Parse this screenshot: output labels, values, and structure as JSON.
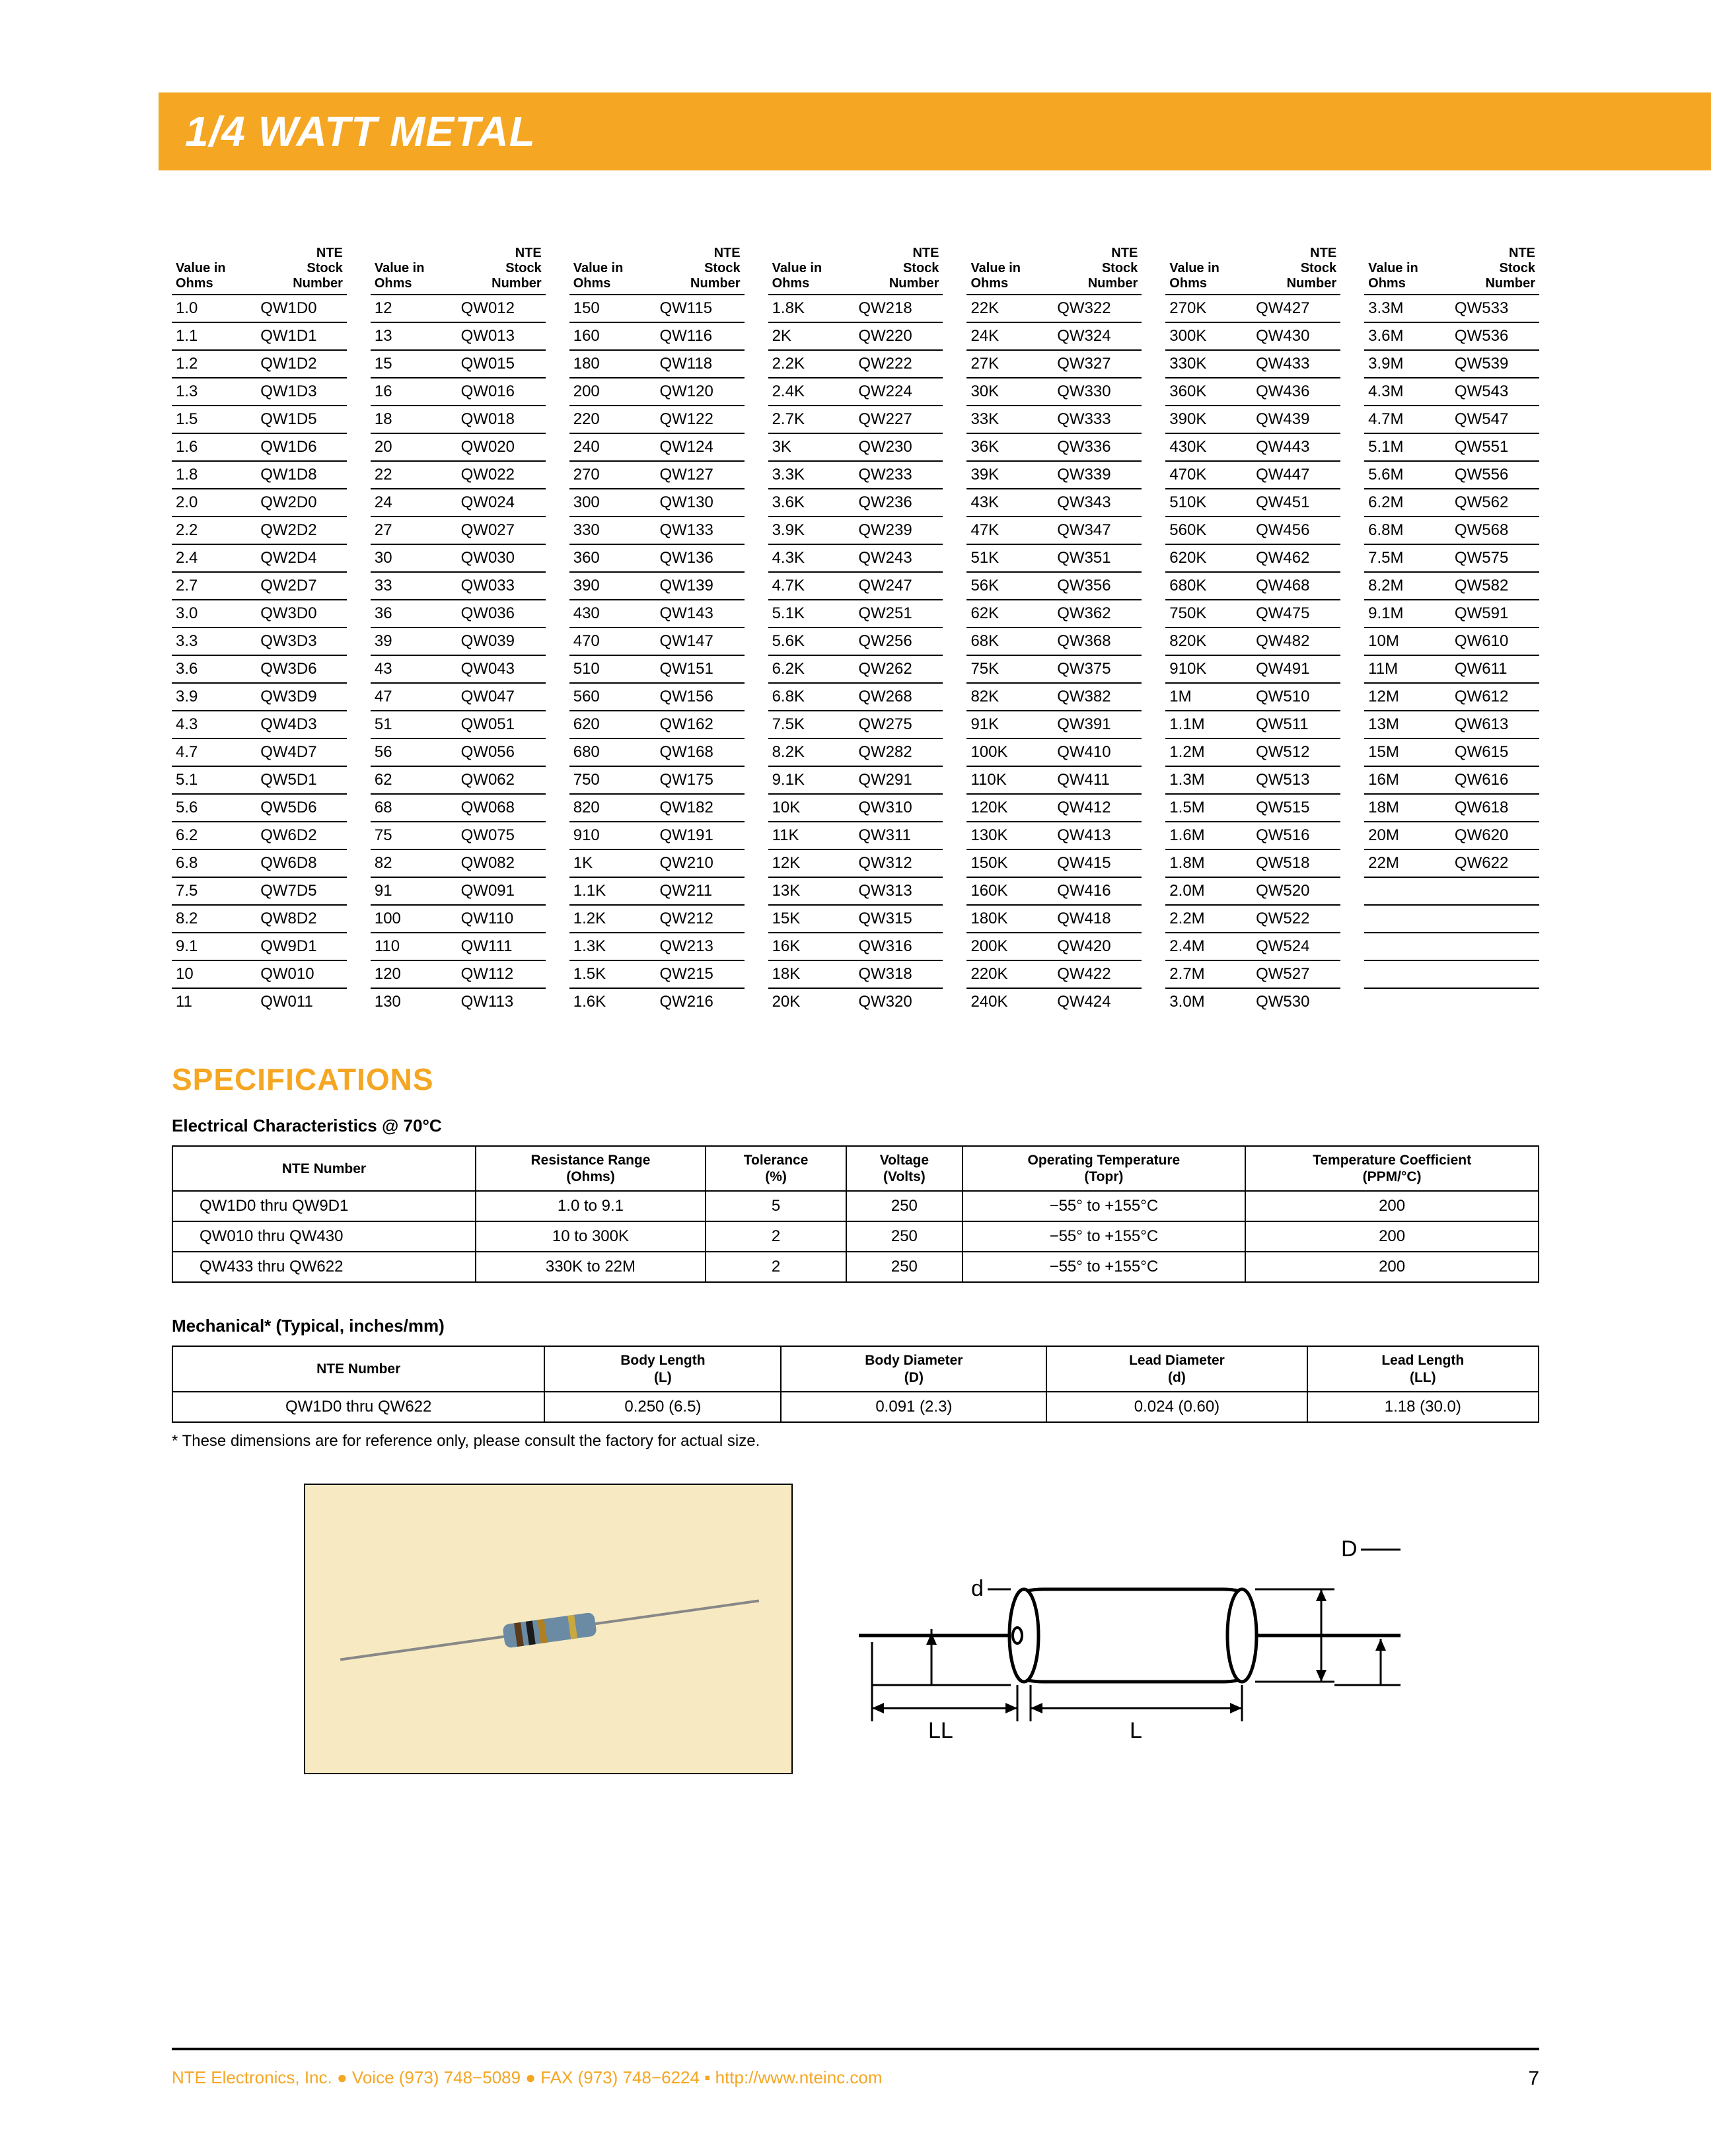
{
  "title": "1/4 WATT METAL",
  "header_value": "Value in\nOhms",
  "header_stock": "NTE\nStock\nNumber",
  "columns": [
    [
      [
        "1.0",
        "QW1D0"
      ],
      [
        "1.1",
        "QW1D1"
      ],
      [
        "1.2",
        "QW1D2"
      ],
      [
        "1.3",
        "QW1D3"
      ],
      [
        "1.5",
        "QW1D5"
      ],
      [
        "1.6",
        "QW1D6"
      ],
      [
        "1.8",
        "QW1D8"
      ],
      [
        "2.0",
        "QW2D0"
      ],
      [
        "2.2",
        "QW2D2"
      ],
      [
        "2.4",
        "QW2D4"
      ],
      [
        "2.7",
        "QW2D7"
      ],
      [
        "3.0",
        "QW3D0"
      ],
      [
        "3.3",
        "QW3D3"
      ],
      [
        "3.6",
        "QW3D6"
      ],
      [
        "3.9",
        "QW3D9"
      ],
      [
        "4.3",
        "QW4D3"
      ],
      [
        "4.7",
        "QW4D7"
      ],
      [
        "5.1",
        "QW5D1"
      ],
      [
        "5.6",
        "QW5D6"
      ],
      [
        "6.2",
        "QW6D2"
      ],
      [
        "6.8",
        "QW6D8"
      ],
      [
        "7.5",
        "QW7D5"
      ],
      [
        "8.2",
        "QW8D2"
      ],
      [
        "9.1",
        "QW9D1"
      ],
      [
        "10",
        "QW010"
      ],
      [
        "11",
        "QW011"
      ]
    ],
    [
      [
        "12",
        "QW012"
      ],
      [
        "13",
        "QW013"
      ],
      [
        "15",
        "QW015"
      ],
      [
        "16",
        "QW016"
      ],
      [
        "18",
        "QW018"
      ],
      [
        "20",
        "QW020"
      ],
      [
        "22",
        "QW022"
      ],
      [
        "24",
        "QW024"
      ],
      [
        "27",
        "QW027"
      ],
      [
        "30",
        "QW030"
      ],
      [
        "33",
        "QW033"
      ],
      [
        "36",
        "QW036"
      ],
      [
        "39",
        "QW039"
      ],
      [
        "43",
        "QW043"
      ],
      [
        "47",
        "QW047"
      ],
      [
        "51",
        "QW051"
      ],
      [
        "56",
        "QW056"
      ],
      [
        "62",
        "QW062"
      ],
      [
        "68",
        "QW068"
      ],
      [
        "75",
        "QW075"
      ],
      [
        "82",
        "QW082"
      ],
      [
        "91",
        "QW091"
      ],
      [
        "100",
        "QW110"
      ],
      [
        "110",
        "QW111"
      ],
      [
        "120",
        "QW112"
      ],
      [
        "130",
        "QW113"
      ]
    ],
    [
      [
        "150",
        "QW115"
      ],
      [
        "160",
        "QW116"
      ],
      [
        "180",
        "QW118"
      ],
      [
        "200",
        "QW120"
      ],
      [
        "220",
        "QW122"
      ],
      [
        "240",
        "QW124"
      ],
      [
        "270",
        "QW127"
      ],
      [
        "300",
        "QW130"
      ],
      [
        "330",
        "QW133"
      ],
      [
        "360",
        "QW136"
      ],
      [
        "390",
        "QW139"
      ],
      [
        "430",
        "QW143"
      ],
      [
        "470",
        "QW147"
      ],
      [
        "510",
        "QW151"
      ],
      [
        "560",
        "QW156"
      ],
      [
        "620",
        "QW162"
      ],
      [
        "680",
        "QW168"
      ],
      [
        "750",
        "QW175"
      ],
      [
        "820",
        "QW182"
      ],
      [
        "910",
        "QW191"
      ],
      [
        "1K",
        "QW210"
      ],
      [
        "1.1K",
        "QW211"
      ],
      [
        "1.2K",
        "QW212"
      ],
      [
        "1.3K",
        "QW213"
      ],
      [
        "1.5K",
        "QW215"
      ],
      [
        "1.6K",
        "QW216"
      ]
    ],
    [
      [
        "1.8K",
        "QW218"
      ],
      [
        "2K",
        "QW220"
      ],
      [
        "2.2K",
        "QW222"
      ],
      [
        "2.4K",
        "QW224"
      ],
      [
        "2.7K",
        "QW227"
      ],
      [
        "3K",
        "QW230"
      ],
      [
        "3.3K",
        "QW233"
      ],
      [
        "3.6K",
        "QW236"
      ],
      [
        "3.9K",
        "QW239"
      ],
      [
        "4.3K",
        "QW243"
      ],
      [
        "4.7K",
        "QW247"
      ],
      [
        "5.1K",
        "QW251"
      ],
      [
        "5.6K",
        "QW256"
      ],
      [
        "6.2K",
        "QW262"
      ],
      [
        "6.8K",
        "QW268"
      ],
      [
        "7.5K",
        "QW275"
      ],
      [
        "8.2K",
        "QW282"
      ],
      [
        "9.1K",
        "QW291"
      ],
      [
        "10K",
        "QW310"
      ],
      [
        "11K",
        "QW311"
      ],
      [
        "12K",
        "QW312"
      ],
      [
        "13K",
        "QW313"
      ],
      [
        "15K",
        "QW315"
      ],
      [
        "16K",
        "QW316"
      ],
      [
        "18K",
        "QW318"
      ],
      [
        "20K",
        "QW320"
      ]
    ],
    [
      [
        "22K",
        "QW322"
      ],
      [
        "24K",
        "QW324"
      ],
      [
        "27K",
        "QW327"
      ],
      [
        "30K",
        "QW330"
      ],
      [
        "33K",
        "QW333"
      ],
      [
        "36K",
        "QW336"
      ],
      [
        "39K",
        "QW339"
      ],
      [
        "43K",
        "QW343"
      ],
      [
        "47K",
        "QW347"
      ],
      [
        "51K",
        "QW351"
      ],
      [
        "56K",
        "QW356"
      ],
      [
        "62K",
        "QW362"
      ],
      [
        "68K",
        "QW368"
      ],
      [
        "75K",
        "QW375"
      ],
      [
        "82K",
        "QW382"
      ],
      [
        "91K",
        "QW391"
      ],
      [
        "100K",
        "QW410"
      ],
      [
        "110K",
        "QW411"
      ],
      [
        "120K",
        "QW412"
      ],
      [
        "130K",
        "QW413"
      ],
      [
        "150K",
        "QW415"
      ],
      [
        "160K",
        "QW416"
      ],
      [
        "180K",
        "QW418"
      ],
      [
        "200K",
        "QW420"
      ],
      [
        "220K",
        "QW422"
      ],
      [
        "240K",
        "QW424"
      ]
    ],
    [
      [
        "270K",
        "QW427"
      ],
      [
        "300K",
        "QW430"
      ],
      [
        "330K",
        "QW433"
      ],
      [
        "360K",
        "QW436"
      ],
      [
        "390K",
        "QW439"
      ],
      [
        "430K",
        "QW443"
      ],
      [
        "470K",
        "QW447"
      ],
      [
        "510K",
        "QW451"
      ],
      [
        "560K",
        "QW456"
      ],
      [
        "620K",
        "QW462"
      ],
      [
        "680K",
        "QW468"
      ],
      [
        "750K",
        "QW475"
      ],
      [
        "820K",
        "QW482"
      ],
      [
        "910K",
        "QW491"
      ],
      [
        "1M",
        "QW510"
      ],
      [
        "1.1M",
        "QW511"
      ],
      [
        "1.2M",
        "QW512"
      ],
      [
        "1.3M",
        "QW513"
      ],
      [
        "1.5M",
        "QW515"
      ],
      [
        "1.6M",
        "QW516"
      ],
      [
        "1.8M",
        "QW518"
      ],
      [
        "2.0M",
        "QW520"
      ],
      [
        "2.2M",
        "QW522"
      ],
      [
        "2.4M",
        "QW524"
      ],
      [
        "2.7M",
        "QW527"
      ],
      [
        "3.0M",
        "QW530"
      ]
    ],
    [
      [
        "3.3M",
        "QW533"
      ],
      [
        "3.6M",
        "QW536"
      ],
      [
        "3.9M",
        "QW539"
      ],
      [
        "4.3M",
        "QW543"
      ],
      [
        "4.7M",
        "QW547"
      ],
      [
        "5.1M",
        "QW551"
      ],
      [
        "5.6M",
        "QW556"
      ],
      [
        "6.2M",
        "QW562"
      ],
      [
        "6.8M",
        "QW568"
      ],
      [
        "7.5M",
        "QW575"
      ],
      [
        "8.2M",
        "QW582"
      ],
      [
        "9.1M",
        "QW591"
      ],
      [
        "10M",
        "QW610"
      ],
      [
        "11M",
        "QW611"
      ],
      [
        "12M",
        "QW612"
      ],
      [
        "13M",
        "QW613"
      ],
      [
        "15M",
        "QW615"
      ],
      [
        "16M",
        "QW616"
      ],
      [
        "18M",
        "QW618"
      ],
      [
        "20M",
        "QW620"
      ],
      [
        "22M",
        "QW622"
      ],
      [
        "",
        ""
      ],
      [
        "",
        ""
      ],
      [
        "",
        ""
      ],
      [
        "",
        ""
      ],
      [
        "",
        ""
      ]
    ]
  ],
  "spec_heading": "SPECIFICATIONS",
  "elec_heading": "Electrical Characteristics @ 70°C",
  "elec_headers": [
    "NTE Number",
    "Resistance Range\n(Ohms)",
    "Tolerance\n(%)",
    "Voltage\n(Volts)",
    "Operating Temperature\n(Topr)",
    "Temperature Coefficient\n(PPM/°C)"
  ],
  "elec_rows": [
    [
      "QW1D0 thru QW9D1",
      "1.0 to 9.1",
      "5",
      "250",
      "−55° to +155°C",
      "200"
    ],
    [
      "QW010 thru QW430",
      "10 to 300K",
      "2",
      "250",
      "−55° to +155°C",
      "200"
    ],
    [
      "QW433 thru QW622",
      "330K to 22M",
      "2",
      "250",
      "−55° to +155°C",
      "200"
    ]
  ],
  "mech_heading": "Mechanical* (Typical, inches/mm)",
  "mech_headers": [
    "NTE Number",
    "Body Length\n(L)",
    "Body Diameter\n(D)",
    "Lead Diameter\n(d)",
    "Lead Length\n(LL)"
  ],
  "mech_rows": [
    [
      "QW1D0 thru QW622",
      "0.250 (6.5)",
      "0.091 (2.3)",
      "0.024 (0.60)",
      "1.18 (30.0)"
    ]
  ],
  "footnote": "*    These dimensions are for reference only, please consult the factory for actual size.",
  "diagram_labels": {
    "D": "D",
    "d": "d",
    "L": "L",
    "LL": "LL"
  },
  "footer": {
    "company": "NTE Electronics, Inc. ",
    "voice": " Voice (973) 748−5089 ",
    "fax": " FAX (973) 748−6224 ",
    "url": " http://www.nteinc.com",
    "page": "7"
  },
  "colors": {
    "accent": "#f5a623",
    "photo_bg": "#f7eac2",
    "resistor_body": "#6b8ba4",
    "resistor_band1": "#5a3a1a",
    "resistor_band2": "#1a1a1a",
    "resistor_band3": "#b08020",
    "resistor_band4": "#c9a840"
  }
}
